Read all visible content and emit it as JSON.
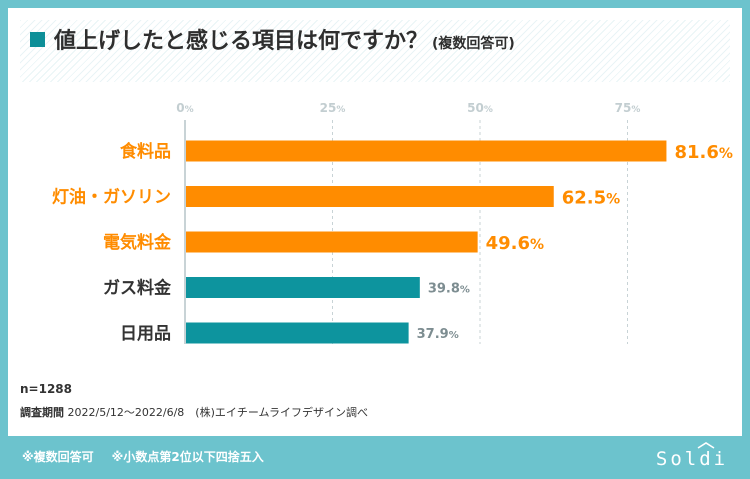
{
  "title": {
    "main": "値上げしたと感じる項目は何ですか？",
    "sub": "(複数回答可)"
  },
  "chart_data": {
    "type": "bar",
    "orientation": "horizontal",
    "categories": [
      "食料品",
      "灯油・ガソリン",
      "電気料金",
      "ガス料金",
      "日用品"
    ],
    "values": [
      81.6,
      62.5,
      49.6,
      39.8,
      37.9
    ],
    "value_labels": [
      "81.6",
      "62.5",
      "49.6",
      "39.8",
      "37.9"
    ],
    "unit": "%",
    "xlim": [
      0,
      100
    ],
    "ticks": [
      0,
      25,
      50,
      75
    ],
    "tick_unit": "%",
    "highlight_count": 3,
    "colors": {
      "highlight": "#ff8c00",
      "normal": "#0d949e",
      "normal_label": "#333333",
      "normal_value": "#7d8d91",
      "grid": "#c8d3d6"
    },
    "grid": true
  },
  "notes": {
    "n": "n=1288",
    "survey_label": "調査期間",
    "survey_text": "2022/5/12〜2022/6/8　(株)エイチームライフデザイン調べ"
  },
  "footer": {
    "note1": "※複数回答可",
    "note2": "※小数点第2位以下四捨五入"
  },
  "logo": {
    "text": "Soldi",
    "color": "#ffffff"
  }
}
